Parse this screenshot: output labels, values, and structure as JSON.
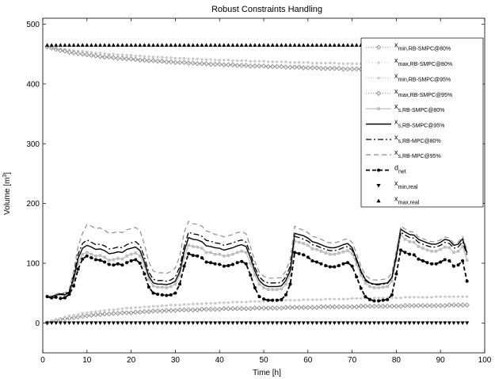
{
  "chart_data": {
    "type": "line",
    "title": "Robust Constraints Handling",
    "xlabel": "Time [h]",
    "ylabel_prefix": "Volume [m",
    "ylabel_sup": "3",
    "ylabel_suffix": "]",
    "xlim": [
      0,
      100
    ],
    "ylim": [
      -50,
      510
    ],
    "xticks": [
      0,
      10,
      20,
      30,
      40,
      50,
      60,
      70,
      80,
      90,
      100
    ],
    "yticks": [
      0,
      100,
      200,
      300,
      400,
      500
    ],
    "grid": false,
    "legend_position": "top-right",
    "x_range": [
      1,
      96
    ],
    "series": [
      {
        "name_main": "x",
        "name_sub": "min,RB-SMPC@80%",
        "color": "#8c8c8c",
        "dash": "1,2",
        "width": 1,
        "marker": "diamond",
        "values": [
          0,
          2,
          4,
          6,
          7,
          8,
          9,
          10,
          11,
          12,
          13,
          14,
          14,
          15,
          15,
          16,
          16,
          17,
          17,
          17,
          18,
          18,
          19,
          19,
          20,
          20,
          20,
          21,
          21,
          21,
          22,
          22,
          22,
          22,
          22,
          23,
          23,
          23,
          23,
          23,
          24,
          24,
          24,
          24,
          24,
          24,
          24,
          25,
          25,
          25,
          25,
          25,
          25,
          25,
          26,
          26,
          26,
          26,
          26,
          26,
          26,
          26,
          27,
          27,
          27,
          27,
          27,
          27,
          27,
          27,
          27,
          28,
          28,
          28,
          28,
          28,
          28,
          28,
          28,
          28,
          28,
          29,
          29,
          29,
          29,
          29,
          29,
          29,
          29,
          29,
          29,
          30,
          30,
          30,
          30,
          30
        ]
      },
      {
        "name_main": "x",
        "name_sub": "max,RB-SMPC@80%",
        "color": "#c8c8c8",
        "dash": "1,3",
        "width": 1,
        "marker": "dot",
        "values": [
          462,
          461,
          460,
          459,
          458,
          457,
          456,
          455,
          455,
          454,
          453,
          452,
          452,
          451,
          450,
          450,
          449,
          449,
          448,
          448,
          447,
          447,
          446,
          446,
          445,
          445,
          445,
          444,
          444,
          443,
          443,
          443,
          442,
          442,
          442,
          441,
          441,
          441,
          440,
          440,
          440,
          440,
          439,
          439,
          439,
          439,
          438,
          438,
          438,
          438,
          437,
          437,
          437,
          437,
          437,
          436,
          436,
          436,
          436,
          436,
          435,
          435,
          435,
          435,
          435,
          435,
          434,
          434,
          434,
          434,
          434,
          434,
          433,
          433,
          433,
          433,
          433,
          433,
          433,
          433,
          432,
          432,
          432,
          432,
          432,
          432,
          432,
          432,
          432,
          431,
          431,
          431,
          431,
          431,
          431,
          431
        ]
      },
      {
        "name_main": "x",
        "name_sub": "min,RB-SMPC@95%",
        "color": "#c8c8c8",
        "dash": "1,2",
        "width": 1.2,
        "marker": "dot",
        "values": [
          2,
          4,
          6,
          8,
          10,
          12,
          13,
          14,
          16,
          17,
          18,
          19,
          20,
          21,
          22,
          22,
          23,
          24,
          25,
          25,
          26,
          26,
          27,
          27,
          28,
          28,
          29,
          29,
          30,
          30,
          30,
          31,
          31,
          32,
          32,
          32,
          33,
          33,
          33,
          34,
          34,
          34,
          35,
          35,
          35,
          35,
          36,
          36,
          36,
          36,
          37,
          37,
          37,
          37,
          38,
          38,
          38,
          38,
          39,
          39,
          39,
          39,
          39,
          40,
          40,
          40,
          40,
          40,
          40,
          41,
          41,
          41,
          41,
          41,
          42,
          42,
          42,
          42,
          42,
          42,
          42,
          43,
          43,
          43,
          43,
          43,
          43,
          43,
          44,
          44,
          44,
          44,
          44,
          44,
          44,
          44
        ]
      },
      {
        "name_main": "x",
        "name_sub": "max,RB-SMPC@95%",
        "color": "#8c8c8c",
        "dash": "1,2",
        "width": 1,
        "marker": "diamond",
        "values": [
          462,
          460,
          458,
          456,
          455,
          453,
          452,
          451,
          450,
          449,
          448,
          447,
          446,
          445,
          445,
          444,
          443,
          443,
          442,
          442,
          441,
          440,
          440,
          439,
          439,
          438,
          438,
          437,
          437,
          436,
          436,
          436,
          435,
          435,
          434,
          434,
          434,
          433,
          433,
          433,
          432,
          432,
          432,
          431,
          431,
          431,
          430,
          430,
          430,
          430,
          429,
          429,
          429,
          429,
          428,
          428,
          428,
          428,
          427,
          427,
          427,
          427,
          426,
          426,
          426,
          426,
          426,
          425,
          425,
          425,
          425,
          425,
          424,
          424,
          424,
          424,
          424,
          424,
          423,
          423,
          423,
          423,
          423,
          423,
          422,
          422,
          422,
          422,
          422,
          422,
          422,
          421,
          421,
          421,
          421,
          421
        ]
      },
      {
        "name_main": "x",
        "name_sub": "s,RB-SMPC@80%",
        "color": "#bdbdbd",
        "dash": "",
        "width": 1.3,
        "marker": "square",
        "values": [
          45,
          44,
          46,
          47,
          46,
          50,
          70,
          100,
          115,
          118,
          115,
          112,
          113,
          110,
          105,
          106,
          108,
          107,
          112,
          115,
          117,
          112,
          95,
          73,
          62,
          60,
          60,
          59,
          61,
          65,
          80,
          110,
          130,
          128,
          127,
          125,
          118,
          118,
          115,
          115,
          112,
          113,
          115,
          118,
          120,
          118,
          100,
          80,
          65,
          59,
          56,
          56,
          56,
          57,
          65,
          80,
          137,
          135,
          133,
          130,
          124,
          123,
          120,
          117,
          115,
          115,
          117,
          119,
          121,
          116,
          98,
          80,
          67,
          61,
          59,
          59,
          60,
          61,
          70,
          105,
          148,
          140,
          136,
          135,
          128,
          125,
          122,
          120,
          120,
          123,
          127,
          126,
          118,
          120,
          128,
          105
        ]
      },
      {
        "name_main": "x",
        "name_sub": "s,RB-SMPC@95%",
        "color": "#000000",
        "dash": "",
        "width": 1.4,
        "marker": "none",
        "values": [
          45,
          44,
          47,
          48,
          47,
          52,
          75,
          108,
          125,
          130,
          127,
          123,
          124,
          121,
          116,
          117,
          119,
          118,
          123,
          125,
          127,
          121,
          102,
          78,
          67,
          65,
          65,
          64,
          66,
          70,
          86,
          120,
          143,
          140,
          139,
          136,
          129,
          128,
          126,
          125,
          122,
          124,
          126,
          129,
          131,
          128,
          109,
          87,
          71,
          64,
          61,
          61,
          61,
          62,
          71,
          88,
          150,
          148,
          146,
          142,
          136,
          134,
          131,
          128,
          126,
          126,
          128,
          131,
          133,
          126,
          107,
          87,
          73,
          67,
          65,
          65,
          66,
          67,
          76,
          113,
          157,
          152,
          148,
          147,
          140,
          137,
          134,
          132,
          132,
          135,
          140,
          138,
          130,
          132,
          141,
          117
        ]
      },
      {
        "name_main": "x",
        "name_sub": "s,RB-MPC@80%",
        "color": "#000000",
        "dash": "7,3,2,3",
        "width": 1.3,
        "marker": "none",
        "values": [
          45,
          44,
          47,
          49,
          48,
          54,
          80,
          115,
          133,
          139,
          135,
          131,
          132,
          129,
          124,
          125,
          127,
          126,
          131,
          134,
          136,
          130,
          110,
          85,
          73,
          71,
          71,
          70,
          72,
          77,
          94,
          128,
          152,
          149,
          148,
          145,
          138,
          137,
          134,
          133,
          130,
          132,
          134,
          137,
          139,
          135,
          116,
          93,
          77,
          70,
          67,
          67,
          67,
          68,
          77,
          95,
          145,
          143,
          140,
          137,
          131,
          129,
          126,
          123,
          121,
          121,
          123,
          126,
          128,
          122,
          104,
          85,
          71,
          66,
          64,
          64,
          65,
          66,
          75,
          110,
          152,
          147,
          143,
          142,
          135,
          132,
          129,
          127,
          127,
          130,
          135,
          133,
          125,
          127,
          136,
          113
        ]
      },
      {
        "name_main": "x",
        "name_sub": "s,RB-MPC@95%",
        "color": "#8f8f8f",
        "dash": "6,4",
        "width": 1.2,
        "marker": "none",
        "values": [
          45,
          45,
          48,
          51,
          50,
          57,
          88,
          128,
          150,
          165,
          162,
          158,
          159,
          155,
          150,
          151,
          153,
          151,
          156,
          158,
          160,
          154,
          132,
          102,
          87,
          84,
          84,
          83,
          86,
          92,
          112,
          152,
          170,
          166,
          165,
          162,
          154,
          152,
          148,
          147,
          144,
          146,
          148,
          151,
          153,
          149,
          127,
          103,
          85,
          78,
          75,
          75,
          75,
          76,
          87,
          107,
          162,
          158,
          155,
          151,
          145,
          143,
          140,
          136,
          134,
          134,
          136,
          139,
          141,
          135,
          116,
          95,
          80,
          74,
          72,
          72,
          73,
          74,
          84,
          121,
          162,
          157,
          153,
          152,
          144,
          141,
          138,
          136,
          136,
          139,
          144,
          142,
          133,
          135,
          145,
          122
        ]
      },
      {
        "name_main": "d",
        "name_sub": "net",
        "color": "#000000",
        "dash": "5,3",
        "width": 1.8,
        "marker": "circle",
        "values": [
          44,
          42,
          43,
          41,
          42,
          48,
          62,
          90,
          107,
          112,
          109,
          106,
          105,
          102,
          98,
          97,
          99,
          97,
          101,
          104,
          106,
          100,
          82,
          60,
          50,
          48,
          47,
          46,
          47,
          50,
          65,
          95,
          116,
          113,
          112,
          109,
          102,
          101,
          99,
          98,
          95,
          96,
          98,
          101,
          103,
          99,
          80,
          59,
          44,
          40,
          38,
          38,
          38,
          39,
          47,
          65,
          118,
          116,
          114,
          110,
          104,
          102,
          99,
          96,
          94,
          94,
          96,
          99,
          101,
          95,
          77,
          58,
          44,
          39,
          37,
          37,
          38,
          39,
          47,
          82,
          122,
          118,
          115,
          114,
          107,
          104,
          101,
          99,
          99,
          102,
          106,
          104,
          95,
          97,
          104,
          70
        ]
      },
      {
        "name_main": "x",
        "name_sub": "min,real",
        "color": "#000000",
        "dash": "none",
        "width": 0,
        "marker": "tri-down",
        "values": [
          0,
          0,
          0,
          0,
          0,
          0,
          0,
          0,
          0,
          0,
          0,
          0,
          0,
          0,
          0,
          0,
          0,
          0,
          0,
          0,
          0,
          0,
          0,
          0,
          0,
          0,
          0,
          0,
          0,
          0,
          0,
          0,
          0,
          0,
          0,
          0,
          0,
          0,
          0,
          0,
          0,
          0,
          0,
          0,
          0,
          0,
          0,
          0,
          0,
          0,
          0,
          0,
          0,
          0,
          0,
          0,
          0,
          0,
          0,
          0,
          0,
          0,
          0,
          0,
          0,
          0,
          0,
          0,
          0,
          0,
          0,
          0,
          0,
          0,
          0,
          0,
          0,
          0,
          0,
          0,
          0,
          0,
          0,
          0,
          0,
          0,
          0,
          0,
          0,
          0,
          0,
          0,
          0,
          0,
          0,
          0
        ]
      },
      {
        "name_main": "x",
        "name_sub": "max,real",
        "color": "#000000",
        "dash": "none",
        "width": 0,
        "marker": "tri-up",
        "values": [
          465,
          465,
          465,
          465,
          465,
          465,
          465,
          465,
          465,
          465,
          465,
          465,
          465,
          465,
          465,
          465,
          465,
          465,
          465,
          465,
          465,
          465,
          465,
          465,
          465,
          465,
          465,
          465,
          465,
          465,
          465,
          465,
          465,
          465,
          465,
          465,
          465,
          465,
          465,
          465,
          465,
          465,
          465,
          465,
          465,
          465,
          465,
          465,
          465,
          465,
          465,
          465,
          465,
          465,
          465,
          465,
          465,
          465,
          465,
          465,
          465,
          465,
          465,
          465,
          465,
          465,
          465,
          465,
          465,
          465,
          465,
          465,
          465,
          465,
          465,
          465,
          465,
          465,
          465,
          465,
          465,
          465,
          465,
          465,
          465,
          465,
          465,
          465,
          465,
          465,
          465,
          465,
          465,
          465,
          465,
          465
        ]
      }
    ]
  }
}
